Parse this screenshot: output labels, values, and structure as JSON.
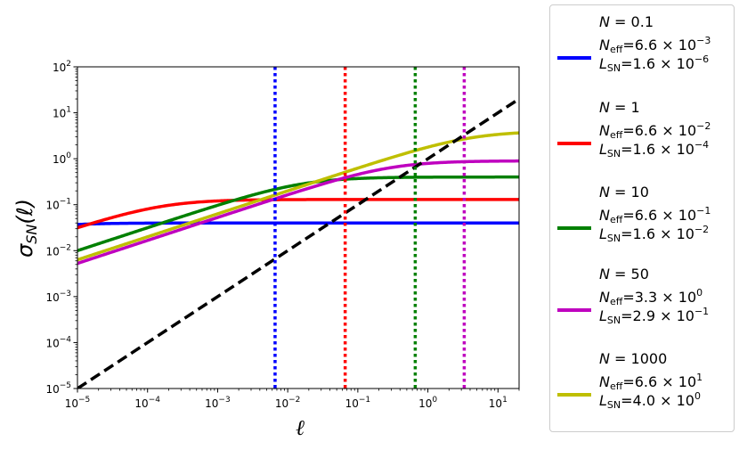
{
  "chart_data": {
    "type": "line",
    "xlabel": "ℓ",
    "ylabel": "σ",
    "ylabel_sub": "SN",
    "ylabel_arg": "(ℓ)",
    "xscale": "log",
    "yscale": "log",
    "xlim": [
      1e-05,
      20
    ],
    "ylim": [
      1e-05,
      100
    ],
    "xticks": [
      {
        "value": 1e-05,
        "base": "10",
        "exp": "−5"
      },
      {
        "value": 0.0001,
        "base": "10",
        "exp": "−4"
      },
      {
        "value": 0.001,
        "base": "10",
        "exp": "−3"
      },
      {
        "value": 0.01,
        "base": "10",
        "exp": "−2"
      },
      {
        "value": 0.1,
        "base": "10",
        "exp": "−1"
      },
      {
        "value": 1,
        "base": "10",
        "exp": "0"
      },
      {
        "value": 10,
        "base": "10",
        "exp": "1"
      }
    ],
    "yticks": [
      {
        "value": 1e-05,
        "base": "10",
        "exp": "−5"
      },
      {
        "value": 0.0001,
        "base": "10",
        "exp": "−4"
      },
      {
        "value": 0.001,
        "base": "10",
        "exp": "−3"
      },
      {
        "value": 0.01,
        "base": "10",
        "exp": "−2"
      },
      {
        "value": 0.1,
        "base": "10",
        "exp": "−1"
      },
      {
        "value": 1,
        "base": "10",
        "exp": "0"
      },
      {
        "value": 10,
        "base": "10",
        "exp": "1"
      },
      {
        "value": 100,
        "base": "10",
        "exp": "2"
      }
    ],
    "grid": false,
    "legend_position": "right outside",
    "series": [
      {
        "color": "#0000ff",
        "N": "0.1",
        "Neff_mant": "6.6",
        "Neff_exp": "−3",
        "LSN_mant": "1.6",
        "LSN_exp": "−6",
        "Neff": 0.0066,
        "LSN": 1.6e-06,
        "plateau": 0.04
      },
      {
        "color": "#ff0000",
        "N": "1",
        "Neff_mant": "6.6",
        "Neff_exp": "−2",
        "LSN_mant": "1.6",
        "LSN_exp": "−4",
        "Neff": 0.066,
        "LSN": 0.00016,
        "plateau": 0.13
      },
      {
        "color": "#008000",
        "N": "10",
        "Neff_mant": "6.6",
        "Neff_exp": "−1",
        "LSN_mant": "1.6",
        "LSN_exp": "−2",
        "Neff": 0.66,
        "LSN": 0.016,
        "plateau": 0.4
      },
      {
        "color": "#bf00bf",
        "N": "50",
        "Neff_mant": "3.3",
        "Neff_exp": "0",
        "LSN_mant": "2.9",
        "LSN_exp": "−1",
        "Neff": 3.3,
        "LSN": 0.29,
        "plateau": 0.9
      },
      {
        "color": "#bfbf00",
        "N": "1000",
        "Neff_mant": "6.6",
        "Neff_exp": "1",
        "LSN_mant": "4.0",
        "LSN_exp": "0",
        "Neff": 66,
        "LSN": 4.0,
        "plateau": 4.0
      }
    ],
    "reference_line": {
      "color": "#000000",
      "style": "dashed",
      "points": [
        [
          1e-05,
          1e-05
        ],
        [
          20,
          20
        ]
      ]
    }
  }
}
